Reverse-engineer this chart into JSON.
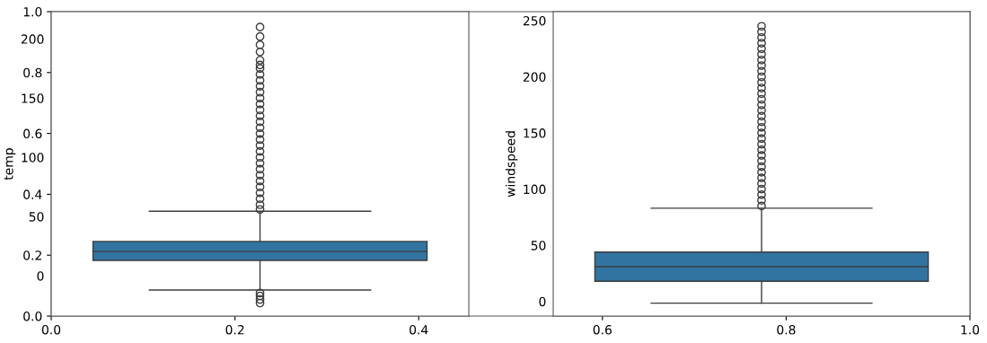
{
  "chart_data": [
    {
      "type": "scatter",
      "xlim": [
        0,
        1
      ],
      "ylim": [
        0,
        1
      ],
      "xticks": [
        {
          "value": 0,
          "label": "0.0"
        },
        {
          "value": 0.2,
          "label": "0.2"
        },
        {
          "value": 0.4,
          "label": "0.4"
        },
        {
          "value": 0.6,
          "label": "0.6"
        },
        {
          "value": 0.8,
          "label": "0.8"
        },
        {
          "value": 1,
          "label": "1.0"
        }
      ],
      "yticks": [
        {
          "value": 0,
          "label": "0.0"
        },
        {
          "value": 0.2,
          "label": "0.2"
        },
        {
          "value": 0.4,
          "label": "0.4"
        },
        {
          "value": 0.6,
          "label": "0.6"
        },
        {
          "value": 0.8,
          "label": "0.8"
        },
        {
          "value": 1,
          "label": "1.0"
        }
      ]
    },
    {
      "type": "box",
      "ylabel": "temp",
      "categories": [
        null
      ],
      "ylim": [
        -34,
        223
      ],
      "yticks": [
        0,
        50,
        100,
        150,
        200
      ],
      "tick_labels": "y",
      "series": [
        {
          "color": "#3274a1",
          "boxes": [
            {
              "low": -12,
              "q1": 13,
              "median": 20.5,
              "q3": 29,
              "high": 54.5,
              "outliers": [
                -14.5,
                -17,
                -20,
                -23,
                56,
                60,
                65,
                70,
                75,
                80,
                85,
                90,
                95,
                100,
                105,
                110,
                115,
                120,
                125,
                130,
                135,
                140,
                145,
                150,
                155,
                160,
                165,
                170,
                175,
                178,
                182,
                189,
                195,
                202,
                210
              ]
            }
          ]
        }
      ]
    },
    {
      "type": "box",
      "ylabel": "windspeed",
      "categories": [
        null
      ],
      "ylim": [
        -13,
        258
      ],
      "yticks": [
        0,
        50,
        100,
        150,
        200,
        250
      ],
      "tick_labels": "y",
      "series": [
        {
          "color": "#3274a1",
          "boxes": [
            {
              "low": -1.5,
              "q1": 18,
              "median": 31,
              "q3": 44,
              "high": 83,
              "outliers": [
                85,
                90,
                95,
                100,
                105,
                110,
                115,
                120,
                125,
                130,
                135,
                140,
                145,
                150,
                155,
                160,
                165,
                170,
                175,
                180,
                185,
                190,
                195,
                200,
                205,
                210,
                215,
                220,
                225,
                230,
                235,
                240,
                245
              ]
            }
          ]
        }
      ]
    }
  ]
}
